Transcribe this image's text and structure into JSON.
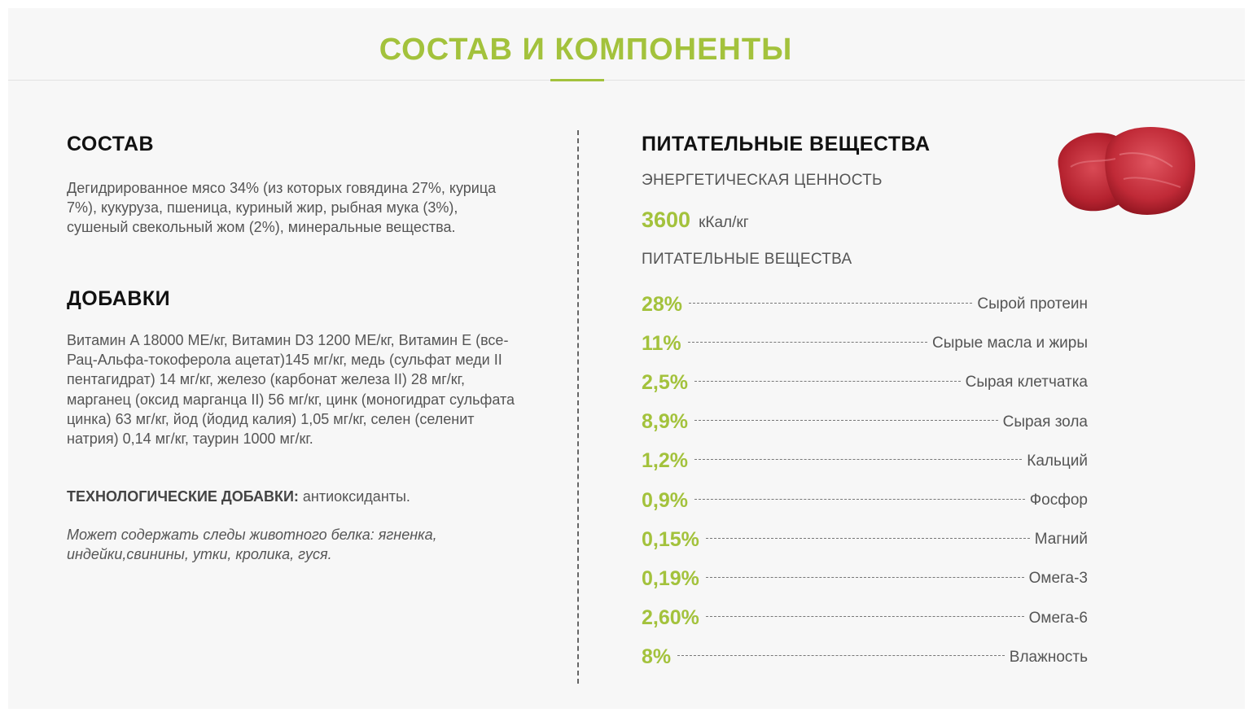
{
  "header": {
    "title": "СОСТАВ И КОМПОНЕНТЫ"
  },
  "composition": {
    "title": "СОСТАВ",
    "text": "Дегидрированное мясо 34% (из которых говядина 27%, курица 7%), кукуруза, пшеница, куриный жир, рыбная мука (3%), сушеный свекольный жом (2%), минеральные вещества."
  },
  "additives": {
    "title": "ДОБАВКИ",
    "text": "Витамин A 18000 МЕ/кг, Витамин D3 1200 МЕ/кг, Витамин E (все-Рац-Альфа-токоферола ацетат)145 мг/кг, медь (сульфат меди II пентагидрат) 14 мг/кг, железо (карбонат железа II) 28 мг/кг, марганец (оксид марганца II) 56 мг/кг, цинк (моногидрат сульфата цинка) 63 мг/кг, йод (йодид калия) 1,05 мг/кг, селен (селенит натрия) 0,14 мг/кг, таурин 1000 мг/кг.",
    "tech_label": "ТЕХНОЛОГИЧЕСКИЕ ДОБАВКИ:",
    "tech_value": " антиоксиданты.",
    "note": "Может содержать следы животного белка: ягненка, индейки,свинины, утки, кролика, гуся."
  },
  "nutrients": {
    "title": "ПИТАТЕЛЬНЫЕ ВЕЩЕСТВА",
    "energy_label": "ЭНЕРГЕТИЧЕСКАЯ ЦЕННОСТЬ",
    "energy_value": "3600",
    "energy_unit": "кКал/кг",
    "list_label": "ПИТАТЕЛЬНЫЕ ВЕЩЕСТВА",
    "items": [
      {
        "value": "28%",
        "name": "Сырой протеин"
      },
      {
        "value": "11%",
        "name": "Сырые масла и жиры"
      },
      {
        "value": "2,5%",
        "name": "Сырая клетчатка"
      },
      {
        "value": "8,9%",
        "name": "Сырая зола"
      },
      {
        "value": "1,2%",
        "name": "Кальций"
      },
      {
        "value": "0,9%",
        "name": "Фосфор"
      },
      {
        "value": "0,15%",
        "name": "Магний"
      },
      {
        "value": "0,19%",
        "name": "Омега-3"
      },
      {
        "value": "2,60%",
        "name": "Омега-6"
      },
      {
        "value": "8%",
        "name": "Влажность"
      }
    ]
  },
  "colors": {
    "accent": "#a3c23c",
    "heading": "#111111",
    "text": "#555555",
    "background": "#f7f7f7"
  },
  "image": {
    "icon": "meat-image"
  }
}
